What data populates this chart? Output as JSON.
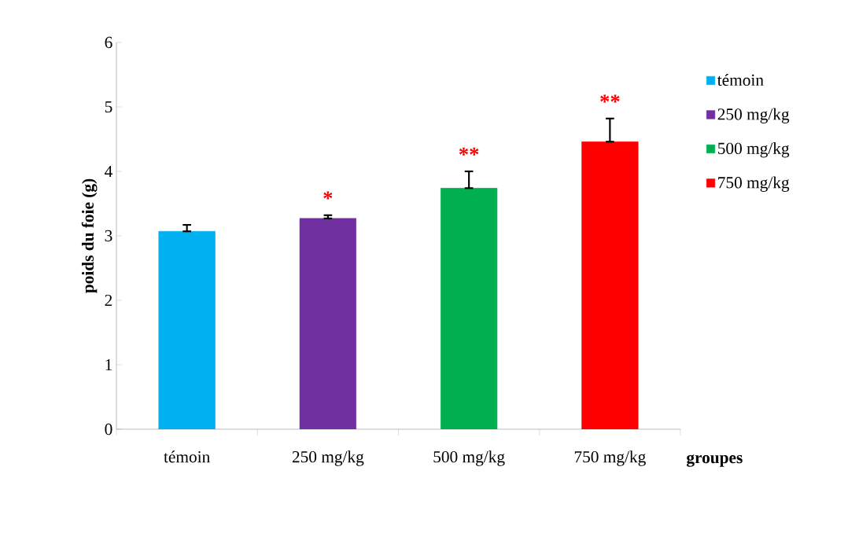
{
  "chart_data": {
    "type": "bar",
    "xlabel": "groupes",
    "ylabel": "poids du foie (g)",
    "categories": [
      "témoin",
      "250 mg/kg",
      "500 mg/kg",
      "750 mg/kg"
    ],
    "series": [
      {
        "name": "témoin",
        "color": "#00b0f0",
        "values": [
          3.07,
          null,
          null,
          null
        ],
        "errors": [
          [
            3.07,
            3.17
          ],
          null,
          null,
          null
        ]
      },
      {
        "name": "250 mg/kg",
        "color": "#7030a0",
        "values": [
          null,
          3.27,
          null,
          null
        ],
        "errors": [
          null,
          [
            3.27,
            3.32
          ],
          null,
          null
        ]
      },
      {
        "name": "500 mg/kg",
        "color": "#00b050",
        "values": [
          null,
          null,
          3.74,
          null
        ],
        "errors": [
          null,
          null,
          [
            3.74,
            4.0
          ],
          null
        ]
      },
      {
        "name": "750 mg/kg",
        "color": "#ff0000",
        "values": [
          null,
          null,
          null,
          4.46
        ],
        "errors": [
          null,
          null,
          null,
          [
            4.46,
            4.82
          ]
        ]
      }
    ],
    "ylim": [
      0,
      6
    ],
    "yticks": [
      0,
      1,
      2,
      3,
      4,
      5,
      6
    ],
    "grid": false,
    "legend": "right",
    "annotations": [
      "*",
      "**",
      "**"
    ]
  }
}
